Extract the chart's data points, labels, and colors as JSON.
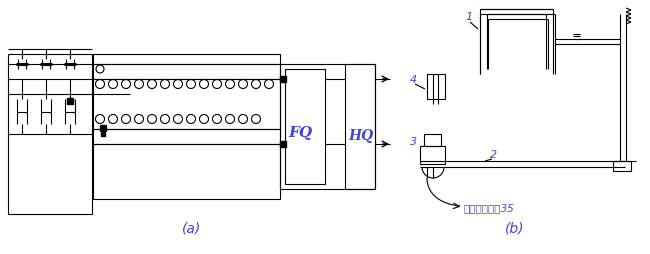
{
  "title_a": "(a)",
  "title_b": "(b)",
  "label_FQ": "FQ",
  "label_HQ": "HQ",
  "label_1": "1",
  "label_2": "2",
  "label_3": "3",
  "label_4": "4",
  "label_35": "去传感器插制35",
  "bg_color": "#ffffff",
  "line_color": "#000000",
  "text_color_blue": "#4444cc",
  "figsize": [
    6.5,
    2.55
  ],
  "dpi": 100
}
